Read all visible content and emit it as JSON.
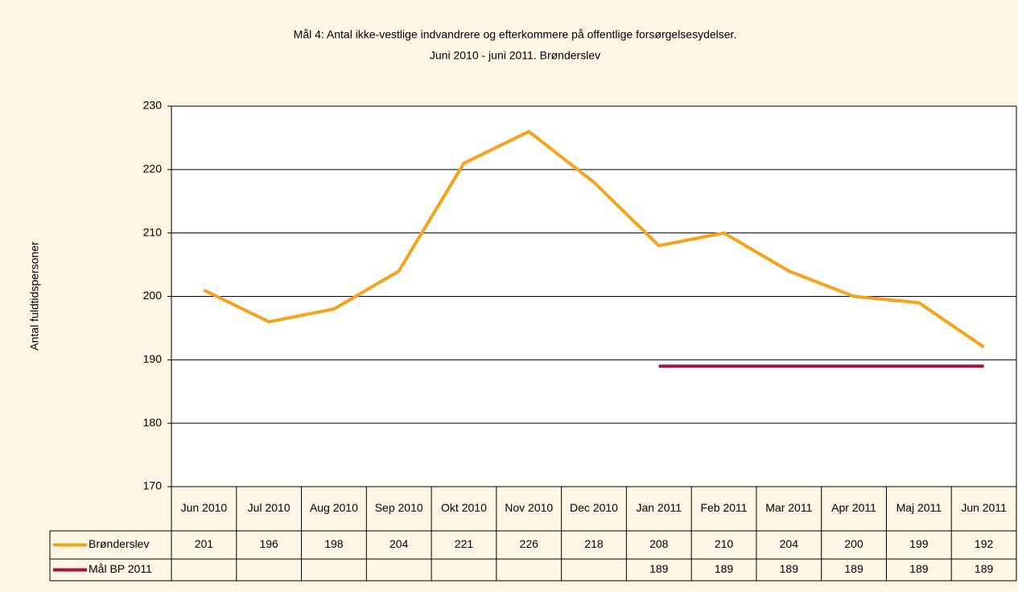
{
  "chart_data": {
    "type": "line",
    "title": "Mål 4: Antal ikke-vestlige indvandrere og efterkommere på offentlige forsørgelsesydelser.",
    "subtitle": "Juni 2010 - juni 2011. Brønderslev",
    "y_label": "Antal fuldtidspersoner",
    "categories": [
      "Jun 2010",
      "Jul 2010",
      "Aug 2010",
      "Sep 2010",
      "Okt 2010",
      "Nov 2010",
      "Dec 2010",
      "Jan 2011",
      "Feb 2011",
      "Mar 2011",
      "Apr 2011",
      "Maj 2011",
      "Jun 2011"
    ],
    "series": [
      {
        "name": "Brønderslev",
        "color": "#f5a31a",
        "values": [
          201,
          196,
          198,
          204,
          221,
          226,
          218,
          208,
          210,
          204,
          200,
          199,
          192
        ]
      },
      {
        "name": "Mål BP 2011",
        "color": "#a0163c",
        "values": [
          null,
          null,
          null,
          null,
          null,
          null,
          null,
          189,
          189,
          189,
          189,
          189,
          189
        ]
      }
    ],
    "ylim": [
      170,
      230
    ],
    "yticks": [
      170,
      180,
      190,
      200,
      210,
      220,
      230
    ],
    "grid": true,
    "data_table": true
  }
}
